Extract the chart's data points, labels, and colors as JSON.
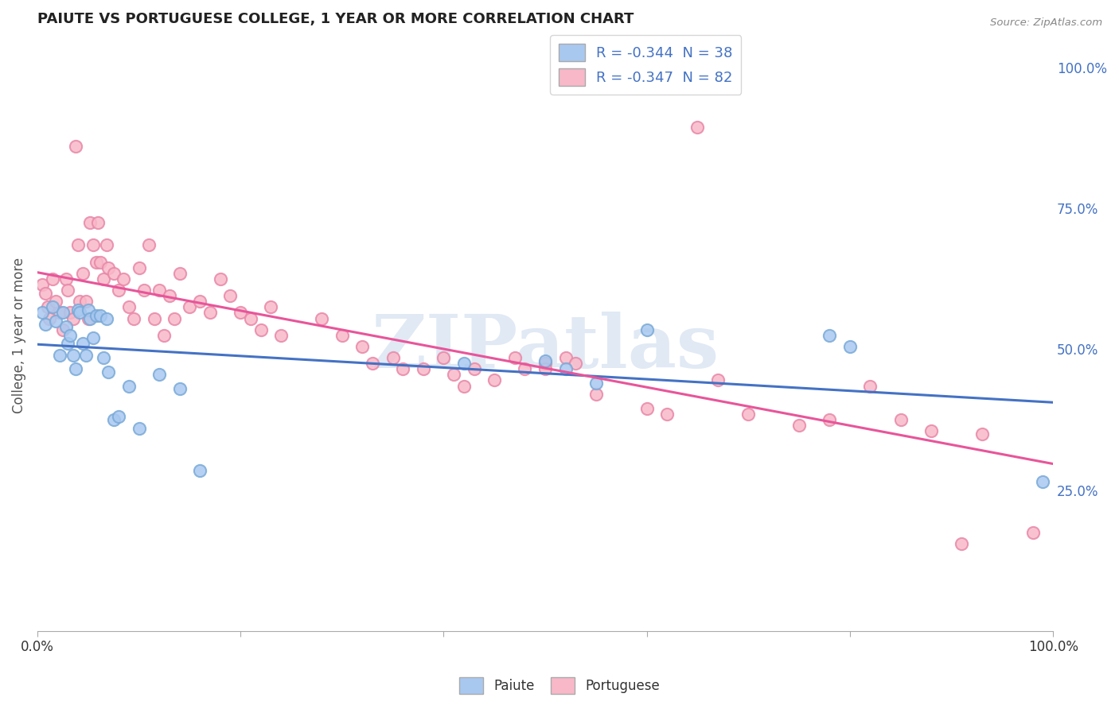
{
  "title": "PAIUTE VS PORTUGUESE COLLEGE, 1 YEAR OR MORE CORRELATION CHART",
  "source": "Source: ZipAtlas.com",
  "ylabel": "College, 1 year or more",
  "right_yticks": [
    "25.0%",
    "50.0%",
    "75.0%",
    "100.0%"
  ],
  "right_ytick_vals": [
    0.25,
    0.5,
    0.75,
    1.0
  ],
  "legend_r_paiute": "R = -0.344",
  "legend_n_paiute": "  N = 38",
  "legend_r_portuguese": "R = -0.347",
  "legend_n_portuguese": "  N = 82",
  "paiute_color": "#A8C8F0",
  "paiute_edge_color": "#7AAAD8",
  "portuguese_color": "#F8B8C8",
  "portuguese_edge_color": "#E888A8",
  "paiute_line_color": "#4472C4",
  "portuguese_line_color": "#E8559A",
  "watermark": "ZIPatlas",
  "watermark_color": "#C8D8EC",
  "paiute_x": [
    0.005,
    0.008,
    0.015,
    0.018,
    0.022,
    0.025,
    0.028,
    0.03,
    0.032,
    0.035,
    0.038,
    0.04,
    0.042,
    0.045,
    0.048,
    0.05,
    0.052,
    0.055,
    0.058,
    0.062,
    0.065,
    0.068,
    0.07,
    0.075,
    0.08,
    0.09,
    0.1,
    0.12,
    0.14,
    0.16,
    0.42,
    0.5,
    0.52,
    0.55,
    0.6,
    0.78,
    0.8,
    0.99
  ],
  "paiute_y": [
    0.565,
    0.545,
    0.575,
    0.55,
    0.49,
    0.565,
    0.54,
    0.51,
    0.525,
    0.49,
    0.465,
    0.57,
    0.565,
    0.51,
    0.49,
    0.57,
    0.555,
    0.52,
    0.56,
    0.56,
    0.485,
    0.555,
    0.46,
    0.375,
    0.38,
    0.435,
    0.36,
    0.455,
    0.43,
    0.285,
    0.475,
    0.48,
    0.465,
    0.44,
    0.535,
    0.525,
    0.505,
    0.265
  ],
  "portuguese_x": [
    0.005,
    0.008,
    0.01,
    0.012,
    0.015,
    0.018,
    0.022,
    0.025,
    0.028,
    0.03,
    0.032,
    0.035,
    0.038,
    0.04,
    0.042,
    0.045,
    0.048,
    0.05,
    0.052,
    0.055,
    0.058,
    0.06,
    0.062,
    0.065,
    0.068,
    0.07,
    0.075,
    0.08,
    0.085,
    0.09,
    0.095,
    0.1,
    0.105,
    0.11,
    0.115,
    0.12,
    0.125,
    0.13,
    0.135,
    0.14,
    0.15,
    0.16,
    0.17,
    0.18,
    0.19,
    0.2,
    0.21,
    0.22,
    0.23,
    0.24,
    0.28,
    0.3,
    0.32,
    0.33,
    0.35,
    0.36,
    0.38,
    0.4,
    0.41,
    0.42,
    0.43,
    0.45,
    0.47,
    0.48,
    0.5,
    0.5,
    0.52,
    0.53,
    0.55,
    0.6,
    0.62,
    0.65,
    0.67,
    0.7,
    0.75,
    0.78,
    0.82,
    0.85,
    0.88,
    0.91,
    0.93,
    0.98
  ],
  "portuguese_y": [
    0.615,
    0.6,
    0.575,
    0.555,
    0.625,
    0.585,
    0.565,
    0.535,
    0.625,
    0.605,
    0.565,
    0.555,
    0.86,
    0.685,
    0.585,
    0.635,
    0.585,
    0.555,
    0.725,
    0.685,
    0.655,
    0.725,
    0.655,
    0.625,
    0.685,
    0.645,
    0.635,
    0.605,
    0.625,
    0.575,
    0.555,
    0.645,
    0.605,
    0.685,
    0.555,
    0.605,
    0.525,
    0.595,
    0.555,
    0.635,
    0.575,
    0.585,
    0.565,
    0.625,
    0.595,
    0.565,
    0.555,
    0.535,
    0.575,
    0.525,
    0.555,
    0.525,
    0.505,
    0.475,
    0.485,
    0.465,
    0.465,
    0.485,
    0.455,
    0.435,
    0.465,
    0.445,
    0.485,
    0.465,
    0.475,
    0.465,
    0.485,
    0.475,
    0.42,
    0.395,
    0.385,
    0.895,
    0.445,
    0.385,
    0.365,
    0.375,
    0.435,
    0.375,
    0.355,
    0.155,
    0.35,
    0.175
  ],
  "xlim": [
    0.0,
    1.0
  ],
  "ylim": [
    0.0,
    1.05
  ],
  "ytick_positions": [
    0.0,
    0.25,
    0.5,
    0.75,
    1.0
  ],
  "xtick_positions": [
    0.0,
    0.2,
    0.4,
    0.6,
    0.8,
    1.0
  ]
}
